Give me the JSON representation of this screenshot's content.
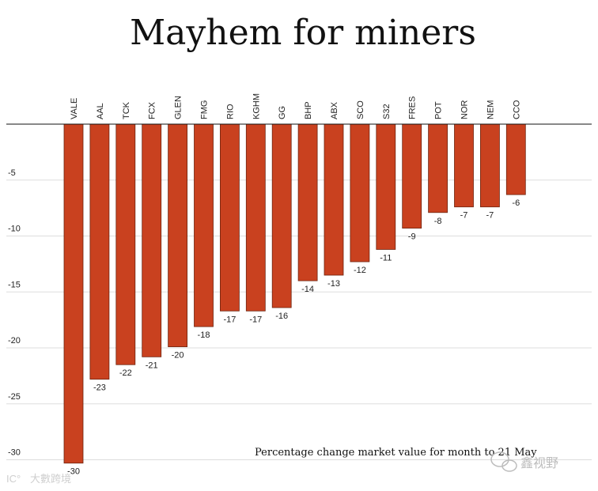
{
  "chart_data": {
    "type": "bar",
    "title": "Mayhem for miners",
    "annotation": "Percentage change market value for month to 21 May",
    "categories": [
      "VALE",
      "AAL",
      "TCK",
      "FCX",
      "GLEN",
      "FMG",
      "RIO",
      "KGHM",
      "GG",
      "BHP",
      "ABX",
      "SCO",
      "S32",
      "FRES",
      "POT",
      "NOR",
      "NEM",
      "CCO"
    ],
    "values": [
      -30.3,
      -22.8,
      -21.5,
      -20.8,
      -19.9,
      -18.1,
      -16.7,
      -16.7,
      -16.4,
      -14,
      -13.5,
      -12.3,
      -11.2,
      -9.3,
      -7.9,
      -7.4,
      -7.4,
      -6.3
    ],
    "data_labels": [
      "-30",
      "-23",
      "-22",
      "-21",
      "-20",
      "-18",
      "-17",
      "-17",
      "-16",
      "-14",
      "-13",
      "-12",
      "-11",
      "-9",
      "-8",
      "-7",
      "-7",
      "-6"
    ],
    "yticks": [
      -5,
      -10,
      -15,
      -20,
      -25,
      -30
    ],
    "ylim": [
      -30.5,
      0
    ],
    "xlabel": "",
    "ylabel": "",
    "bar_color": "#c9411f",
    "bar_edge_color": "#6e2410",
    "grid": true
  },
  "watermarks": {
    "left": "大數跨境",
    "left_mark": "IC°",
    "right": "鑫视野"
  }
}
